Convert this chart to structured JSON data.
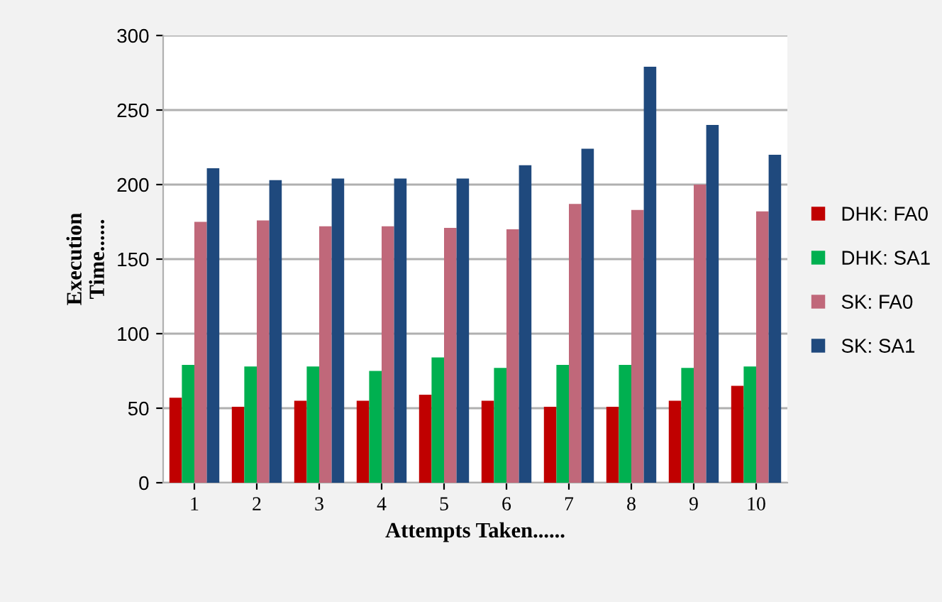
{
  "chart_data": {
    "type": "bar",
    "categories": [
      "1",
      "2",
      "3",
      "4",
      "5",
      "6",
      "7",
      "8",
      "9",
      "10"
    ],
    "series": [
      {
        "name": "DHK: FA0",
        "color": "#c00000",
        "values": [
          57,
          51,
          55,
          55,
          59,
          55,
          51,
          51,
          55,
          65
        ]
      },
      {
        "name": "DHK: SA1",
        "color": "#00b050",
        "values": [
          79,
          78,
          78,
          75,
          84,
          77,
          79,
          79,
          77,
          78
        ]
      },
      {
        "name": "SK: FA0",
        "color": "#c0687a",
        "values": [
          175,
          176,
          172,
          172,
          171,
          170,
          187,
          183,
          200,
          182
        ]
      },
      {
        "name": "SK: SA1",
        "color": "#1f497d",
        "values": [
          211,
          203,
          204,
          204,
          204,
          213,
          224,
          279,
          240,
          220
        ]
      }
    ],
    "xlabel": "Attempts Taken......",
    "ylabel": "Execution\nTime......",
    "ylim": [
      0,
      300
    ],
    "yticks": [
      0,
      50,
      100,
      150,
      200,
      250,
      300
    ],
    "grid": "y",
    "legend": "right"
  }
}
